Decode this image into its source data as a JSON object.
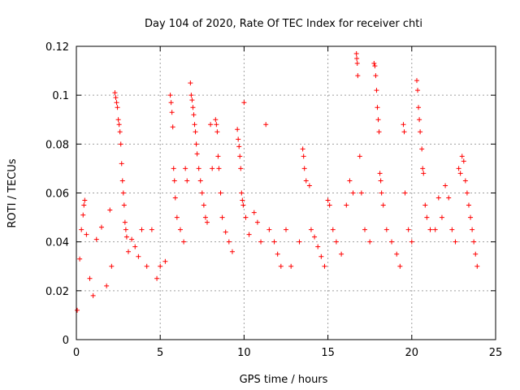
{
  "chart_data": {
    "type": "scatter",
    "title": "Day 104 of 2020, Rate Of TEC Index for receiver chti",
    "xlabel": "GPS time / hours",
    "ylabel": "ROTI / TECUs",
    "xlim": [
      0,
      25
    ],
    "ylim": [
      0,
      0.12
    ],
    "xticks": [
      0,
      5,
      10,
      15,
      20,
      25
    ],
    "xtick_labels": [
      "0",
      "5",
      "10",
      "15",
      "20",
      "25"
    ],
    "yticks": [
      0,
      0.02,
      0.04,
      0.06,
      0.08,
      0.1,
      0.12
    ],
    "ytick_labels": [
      "0",
      "0.02",
      "0.04",
      "0.06",
      "0.08",
      "0.1",
      "0.12"
    ],
    "grid": true,
    "marker": "+",
    "color": "#ff0000",
    "series": [
      {
        "name": "ROTI",
        "points": [
          [
            0.05,
            0.012
          ],
          [
            0.2,
            0.033
          ],
          [
            0.3,
            0.045
          ],
          [
            0.4,
            0.051
          ],
          [
            0.45,
            0.055
          ],
          [
            0.5,
            0.057
          ],
          [
            0.6,
            0.043
          ],
          [
            0.8,
            0.025
          ],
          [
            1.0,
            0.018
          ],
          [
            1.2,
            0.041
          ],
          [
            1.5,
            0.046
          ],
          [
            1.8,
            0.022
          ],
          [
            2.0,
            0.053
          ],
          [
            2.1,
            0.03
          ],
          [
            2.3,
            0.101
          ],
          [
            2.35,
            0.099
          ],
          [
            2.4,
            0.097
          ],
          [
            2.45,
            0.095
          ],
          [
            2.5,
            0.09
          ],
          [
            2.55,
            0.088
          ],
          [
            2.6,
            0.085
          ],
          [
            2.65,
            0.08
          ],
          [
            2.7,
            0.072
          ],
          [
            2.75,
            0.065
          ],
          [
            2.8,
            0.06
          ],
          [
            2.85,
            0.055
          ],
          [
            2.9,
            0.048
          ],
          [
            2.95,
            0.045
          ],
          [
            3.0,
            0.042
          ],
          [
            3.1,
            0.036
          ],
          [
            3.3,
            0.041
          ],
          [
            3.5,
            0.038
          ],
          [
            3.7,
            0.034
          ],
          [
            3.9,
            0.045
          ],
          [
            4.2,
            0.03
          ],
          [
            4.5,
            0.045
          ],
          [
            4.8,
            0.025
          ],
          [
            5.0,
            0.03
          ],
          [
            5.3,
            0.032
          ],
          [
            5.6,
            0.1
          ],
          [
            5.65,
            0.097
          ],
          [
            5.7,
            0.093
          ],
          [
            5.75,
            0.087
          ],
          [
            5.8,
            0.07
          ],
          [
            5.85,
            0.065
          ],
          [
            5.9,
            0.058
          ],
          [
            6.0,
            0.05
          ],
          [
            6.2,
            0.045
          ],
          [
            6.4,
            0.04
          ],
          [
            6.5,
            0.07
          ],
          [
            6.6,
            0.065
          ],
          [
            6.8,
            0.105
          ],
          [
            6.85,
            0.1
          ],
          [
            6.9,
            0.098
          ],
          [
            6.95,
            0.095
          ],
          [
            7.0,
            0.092
          ],
          [
            7.05,
            0.088
          ],
          [
            7.1,
            0.085
          ],
          [
            7.15,
            0.08
          ],
          [
            7.2,
            0.076
          ],
          [
            7.3,
            0.07
          ],
          [
            7.4,
            0.065
          ],
          [
            7.5,
            0.06
          ],
          [
            7.6,
            0.055
          ],
          [
            7.7,
            0.05
          ],
          [
            7.8,
            0.048
          ],
          [
            8.0,
            0.088
          ],
          [
            8.1,
            0.07
          ],
          [
            8.3,
            0.09
          ],
          [
            8.35,
            0.088
          ],
          [
            8.4,
            0.085
          ],
          [
            8.45,
            0.075
          ],
          [
            8.5,
            0.07
          ],
          [
            8.6,
            0.06
          ],
          [
            8.7,
            0.05
          ],
          [
            8.9,
            0.044
          ],
          [
            9.1,
            0.04
          ],
          [
            9.3,
            0.036
          ],
          [
            9.6,
            0.086
          ],
          [
            9.65,
            0.082
          ],
          [
            9.7,
            0.079
          ],
          [
            9.75,
            0.075
          ],
          [
            9.8,
            0.07
          ],
          [
            9.85,
            0.06
          ],
          [
            9.9,
            0.057
          ],
          [
            9.95,
            0.055
          ],
          [
            10.0,
            0.097
          ],
          [
            10.1,
            0.05
          ],
          [
            10.3,
            0.043
          ],
          [
            10.6,
            0.052
          ],
          [
            10.8,
            0.048
          ],
          [
            11.0,
            0.04
          ],
          [
            11.3,
            0.088
          ],
          [
            11.5,
            0.045
          ],
          [
            11.8,
            0.04
          ],
          [
            12.0,
            0.035
          ],
          [
            12.2,
            0.03
          ],
          [
            12.5,
            0.045
          ],
          [
            12.8,
            0.03
          ],
          [
            13.3,
            0.04
          ],
          [
            13.5,
            0.078
          ],
          [
            13.55,
            0.075
          ],
          [
            13.6,
            0.07
          ],
          [
            13.7,
            0.065
          ],
          [
            13.9,
            0.063
          ],
          [
            14.0,
            0.045
          ],
          [
            14.2,
            0.042
          ],
          [
            14.4,
            0.038
          ],
          [
            14.6,
            0.034
          ],
          [
            14.8,
            0.03
          ],
          [
            15.0,
            0.057
          ],
          [
            15.1,
            0.055
          ],
          [
            15.3,
            0.045
          ],
          [
            15.5,
            0.04
          ],
          [
            15.8,
            0.035
          ],
          [
            16.1,
            0.055
          ],
          [
            16.3,
            0.065
          ],
          [
            16.5,
            0.06
          ],
          [
            16.7,
            0.117
          ],
          [
            16.72,
            0.115
          ],
          [
            16.75,
            0.113
          ],
          [
            16.78,
            0.108
          ],
          [
            16.9,
            0.075
          ],
          [
            17.0,
            0.06
          ],
          [
            17.2,
            0.045
          ],
          [
            17.5,
            0.04
          ],
          [
            17.75,
            0.113
          ],
          [
            17.8,
            0.112
          ],
          [
            17.85,
            0.108
          ],
          [
            17.9,
            0.102
          ],
          [
            17.95,
            0.095
          ],
          [
            18.0,
            0.09
          ],
          [
            18.05,
            0.085
          ],
          [
            18.1,
            0.068
          ],
          [
            18.15,
            0.065
          ],
          [
            18.2,
            0.06
          ],
          [
            18.3,
            0.055
          ],
          [
            18.5,
            0.045
          ],
          [
            18.8,
            0.04
          ],
          [
            19.1,
            0.035
          ],
          [
            19.3,
            0.03
          ],
          [
            19.5,
            0.088
          ],
          [
            19.55,
            0.085
          ],
          [
            19.6,
            0.06
          ],
          [
            19.8,
            0.045
          ],
          [
            20.0,
            0.04
          ],
          [
            20.3,
            0.106
          ],
          [
            20.35,
            0.102
          ],
          [
            20.4,
            0.095
          ],
          [
            20.45,
            0.09
          ],
          [
            20.5,
            0.085
          ],
          [
            20.6,
            0.078
          ],
          [
            20.65,
            0.07
          ],
          [
            20.7,
            0.068
          ],
          [
            20.8,
            0.055
          ],
          [
            20.9,
            0.05
          ],
          [
            21.1,
            0.045
          ],
          [
            21.4,
            0.045
          ],
          [
            21.6,
            0.058
          ],
          [
            21.8,
            0.05
          ],
          [
            22.0,
            0.063
          ],
          [
            22.2,
            0.058
          ],
          [
            22.4,
            0.045
          ],
          [
            22.6,
            0.04
          ],
          [
            22.8,
            0.07
          ],
          [
            22.9,
            0.068
          ],
          [
            23.0,
            0.075
          ],
          [
            23.1,
            0.073
          ],
          [
            23.2,
            0.065
          ],
          [
            23.3,
            0.06
          ],
          [
            23.4,
            0.055
          ],
          [
            23.5,
            0.05
          ],
          [
            23.6,
            0.045
          ],
          [
            23.7,
            0.04
          ],
          [
            23.8,
            0.035
          ],
          [
            23.9,
            0.03
          ]
        ]
      }
    ]
  }
}
